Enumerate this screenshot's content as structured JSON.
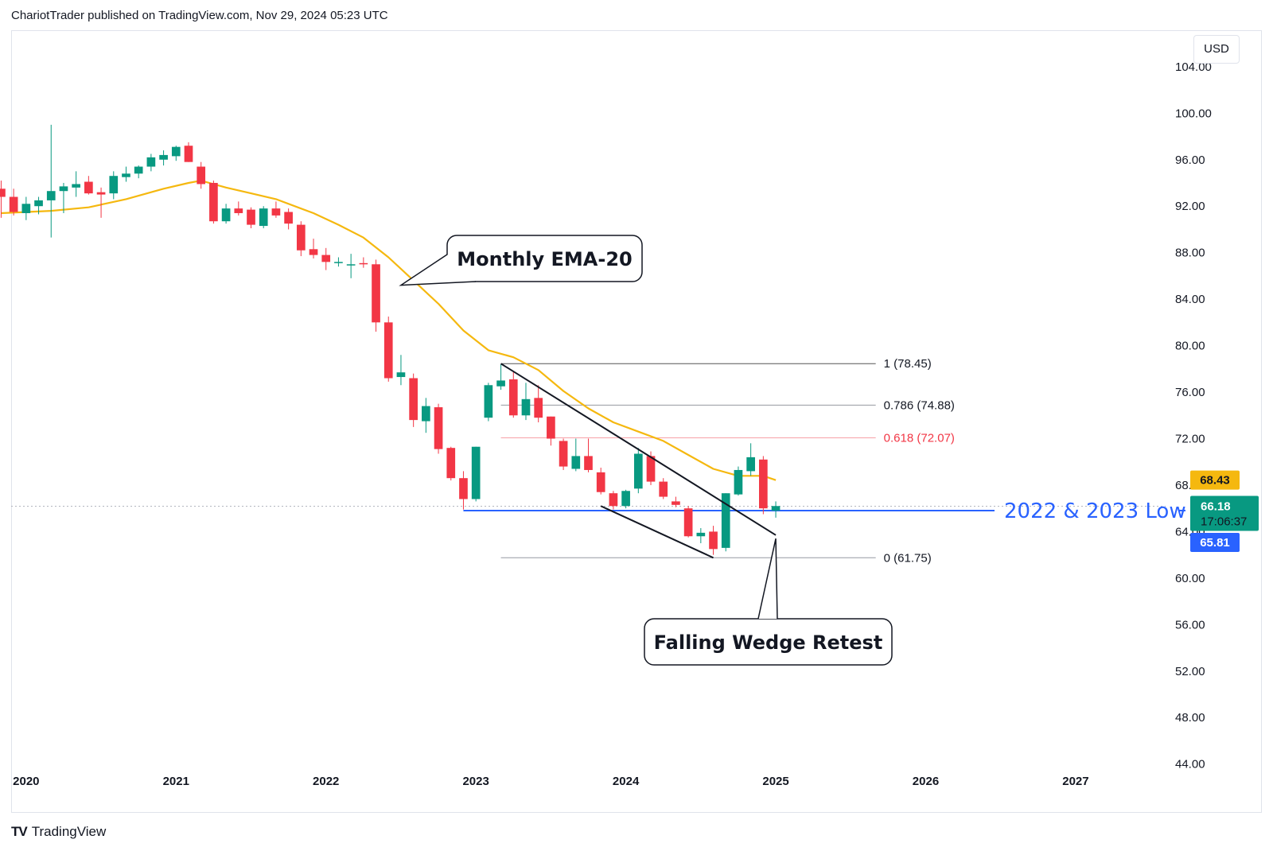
{
  "header": {
    "text": "ChariotTrader published on TradingView.com, Nov 29, 2024 05:23 UTC"
  },
  "currency": "USD",
  "footer": {
    "logo": "TV",
    "name": "TradingView"
  },
  "colors": {
    "up": "#089981",
    "down": "#f23645",
    "ema": "#f5b80f",
    "support": "#2962ff",
    "fib_618": "#f23645",
    "fib_line": "#787b86"
  },
  "chart_data": {
    "type": "candlestick",
    "timeframe": "monthly",
    "x_tick_labels": [
      "2020",
      "2021",
      "2022",
      "2023",
      "2024",
      "2025",
      "2026",
      "2027"
    ],
    "y_tick_labels": [
      "104.00",
      "100.00",
      "96.00",
      "92.00",
      "88.00",
      "84.00",
      "80.00",
      "76.00",
      "72.00",
      "68.00",
      "64.00",
      "60.00",
      "56.00",
      "52.00",
      "48.00",
      "44.00"
    ],
    "y_ticks": [
      104,
      100,
      96,
      92,
      88,
      84,
      80,
      76,
      72,
      68,
      64,
      60,
      56,
      52,
      48,
      44
    ],
    "ylim": [
      43.5,
      107
    ],
    "xlim": [
      2019.9,
      2027.6
    ],
    "candles": [
      {
        "t": "2019-11",
        "o": 93.5,
        "h": 94.2,
        "l": 91.0,
        "c": 92.8
      },
      {
        "t": "2019-12",
        "o": 92.8,
        "h": 93.5,
        "l": 91.2,
        "c": 91.5
      },
      {
        "t": "2020-01",
        "o": 91.4,
        "h": 92.8,
        "l": 90.8,
        "c": 92.2
      },
      {
        "t": "2020-02",
        "o": 92.0,
        "h": 92.8,
        "l": 91.3,
        "c": 92.5
      },
      {
        "t": "2020-03",
        "o": 92.5,
        "h": 99.0,
        "l": 89.3,
        "c": 93.3
      },
      {
        "t": "2020-04",
        "o": 93.3,
        "h": 94.0,
        "l": 91.4,
        "c": 93.7
      },
      {
        "t": "2020-05",
        "o": 93.6,
        "h": 95.0,
        "l": 92.8,
        "c": 93.9
      },
      {
        "t": "2020-06",
        "o": 94.1,
        "h": 94.6,
        "l": 93.0,
        "c": 93.1
      },
      {
        "t": "2020-07",
        "o": 93.2,
        "h": 93.6,
        "l": 91.0,
        "c": 93.0
      },
      {
        "t": "2020-08",
        "o": 93.1,
        "h": 95.0,
        "l": 92.6,
        "c": 94.6
      },
      {
        "t": "2020-09",
        "o": 94.5,
        "h": 95.4,
        "l": 94.1,
        "c": 94.8
      },
      {
        "t": "2020-10",
        "o": 94.8,
        "h": 95.5,
        "l": 94.4,
        "c": 95.4
      },
      {
        "t": "2020-11",
        "o": 95.4,
        "h": 96.5,
        "l": 95.0,
        "c": 96.2
      },
      {
        "t": "2020-12",
        "o": 96.0,
        "h": 96.8,
        "l": 95.5,
        "c": 96.4
      },
      {
        "t": "2021-01",
        "o": 96.3,
        "h": 97.2,
        "l": 95.9,
        "c": 97.1
      },
      {
        "t": "2021-02",
        "o": 97.2,
        "h": 97.5,
        "l": 95.8,
        "c": 95.8
      },
      {
        "t": "2021-03",
        "o": 95.4,
        "h": 95.8,
        "l": 93.5,
        "c": 93.9
      },
      {
        "t": "2021-04",
        "o": 94.0,
        "h": 94.2,
        "l": 90.5,
        "c": 90.7
      },
      {
        "t": "2021-05",
        "o": 90.7,
        "h": 92.2,
        "l": 90.5,
        "c": 91.8
      },
      {
        "t": "2021-06",
        "o": 91.8,
        "h": 92.4,
        "l": 91.2,
        "c": 91.4
      },
      {
        "t": "2021-07",
        "o": 91.7,
        "h": 91.9,
        "l": 90.1,
        "c": 90.4
      },
      {
        "t": "2021-08",
        "o": 90.3,
        "h": 92.0,
        "l": 90.1,
        "c": 91.8
      },
      {
        "t": "2021-09",
        "o": 91.8,
        "h": 92.4,
        "l": 91.0,
        "c": 91.2
      },
      {
        "t": "2021-10",
        "o": 91.5,
        "h": 91.8,
        "l": 90.0,
        "c": 90.5
      },
      {
        "t": "2021-11",
        "o": 90.4,
        "h": 90.7,
        "l": 87.7,
        "c": 88.2
      },
      {
        "t": "2021-12",
        "o": 88.3,
        "h": 89.2,
        "l": 87.5,
        "c": 87.8
      },
      {
        "t": "2022-01",
        "o": 87.8,
        "h": 88.4,
        "l": 86.5,
        "c": 87.2
      },
      {
        "t": "2022-02",
        "o": 87.1,
        "h": 87.6,
        "l": 86.8,
        "c": 87.2
      },
      {
        "t": "2022-03",
        "o": 87.0,
        "h": 87.9,
        "l": 85.8,
        "c": 87.0
      },
      {
        "t": "2022-04",
        "o": 87.1,
        "h": 87.6,
        "l": 86.7,
        "c": 87.0
      },
      {
        "t": "2022-05",
        "o": 87.0,
        "h": 87.4,
        "l": 81.2,
        "c": 82.0
      },
      {
        "t": "2022-06",
        "o": 82.0,
        "h": 82.5,
        "l": 76.9,
        "c": 77.2
      },
      {
        "t": "2022-07",
        "o": 77.3,
        "h": 79.2,
        "l": 76.6,
        "c": 77.7
      },
      {
        "t": "2022-08",
        "o": 77.2,
        "h": 77.6,
        "l": 73.0,
        "c": 73.6
      },
      {
        "t": "2022-09",
        "o": 73.5,
        "h": 75.5,
        "l": 72.5,
        "c": 74.8
      },
      {
        "t": "2022-10",
        "o": 74.7,
        "h": 75.0,
        "l": 70.7,
        "c": 71.1
      },
      {
        "t": "2022-11",
        "o": 71.2,
        "h": 71.3,
        "l": 68.4,
        "c": 68.6
      },
      {
        "t": "2022-12",
        "o": 68.6,
        "h": 69.2,
        "l": 65.9,
        "c": 66.8
      },
      {
        "t": "2023-01",
        "o": 66.8,
        "h": 71.3,
        "l": 66.6,
        "c": 71.3
      },
      {
        "t": "2023-02",
        "o": 73.8,
        "h": 76.8,
        "l": 73.5,
        "c": 76.6
      },
      {
        "t": "2023-03",
        "o": 76.5,
        "h": 78.4,
        "l": 76.2,
        "c": 77.0
      },
      {
        "t": "2023-04",
        "o": 77.1,
        "h": 77.8,
        "l": 73.8,
        "c": 74.0
      },
      {
        "t": "2023-05",
        "o": 74.0,
        "h": 76.8,
        "l": 73.6,
        "c": 75.4
      },
      {
        "t": "2023-06",
        "o": 75.5,
        "h": 76.6,
        "l": 73.4,
        "c": 73.8
      },
      {
        "t": "2023-07",
        "o": 73.9,
        "h": 73.9,
        "l": 71.4,
        "c": 72.0
      },
      {
        "t": "2023-08",
        "o": 71.8,
        "h": 72.0,
        "l": 69.3,
        "c": 69.6
      },
      {
        "t": "2023-09",
        "o": 69.4,
        "h": 72.0,
        "l": 69.2,
        "c": 70.5
      },
      {
        "t": "2023-10",
        "o": 70.5,
        "h": 72.0,
        "l": 69.1,
        "c": 69.3
      },
      {
        "t": "2023-11",
        "o": 69.1,
        "h": 69.5,
        "l": 67.2,
        "c": 67.4
      },
      {
        "t": "2023-12",
        "o": 67.3,
        "h": 67.5,
        "l": 65.9,
        "c": 66.2
      },
      {
        "t": "2024-01",
        "o": 66.2,
        "h": 67.6,
        "l": 66.0,
        "c": 67.5
      },
      {
        "t": "2024-02",
        "o": 67.7,
        "h": 71.2,
        "l": 67.3,
        "c": 70.7
      },
      {
        "t": "2024-03",
        "o": 70.5,
        "h": 70.9,
        "l": 68.0,
        "c": 68.3
      },
      {
        "t": "2024-04",
        "o": 68.3,
        "h": 68.6,
        "l": 66.8,
        "c": 67.0
      },
      {
        "t": "2024-05",
        "o": 66.6,
        "h": 67.0,
        "l": 66.1,
        "c": 66.3
      },
      {
        "t": "2024-06",
        "o": 66.0,
        "h": 66.2,
        "l": 63.5,
        "c": 63.6
      },
      {
        "t": "2024-07",
        "o": 63.6,
        "h": 64.3,
        "l": 63.0,
        "c": 63.9
      },
      {
        "t": "2024-08",
        "o": 64.0,
        "h": 64.5,
        "l": 62.0,
        "c": 62.5
      },
      {
        "t": "2024-09",
        "o": 62.6,
        "h": 67.3,
        "l": 62.3,
        "c": 67.3
      },
      {
        "t": "2024-10",
        "o": 67.2,
        "h": 69.6,
        "l": 67.1,
        "c": 69.3
      },
      {
        "t": "2024-11",
        "o": 69.2,
        "h": 71.6,
        "l": 68.8,
        "c": 70.4
      },
      {
        "t": "2024-12",
        "o": 70.2,
        "h": 70.5,
        "l": 65.5,
        "c": 66.0
      },
      {
        "t": "2025-01",
        "o": 65.8,
        "h": 66.6,
        "l": 65.2,
        "c": 66.2
      }
    ],
    "ema": {
      "name": "Monthly EMA-20",
      "points": [
        {
          "t": "2019-11",
          "v": 91.4
        },
        {
          "t": "2020-03",
          "v": 91.6
        },
        {
          "t": "2020-06",
          "v": 91.9
        },
        {
          "t": "2020-09",
          "v": 92.6
        },
        {
          "t": "2020-12",
          "v": 93.5
        },
        {
          "t": "2021-02",
          "v": 94.0
        },
        {
          "t": "2021-03",
          "v": 94.2
        },
        {
          "t": "2021-05",
          "v": 93.6
        },
        {
          "t": "2021-07",
          "v": 93.1
        },
        {
          "t": "2021-09",
          "v": 92.6
        },
        {
          "t": "2021-12",
          "v": 91.4
        },
        {
          "t": "2022-02",
          "v": 90.4
        },
        {
          "t": "2022-04",
          "v": 89.3
        },
        {
          "t": "2022-06",
          "v": 87.6
        },
        {
          "t": "2022-08",
          "v": 85.6
        },
        {
          "t": "2022-10",
          "v": 83.6
        },
        {
          "t": "2022-12",
          "v": 81.3
        },
        {
          "t": "2023-02",
          "v": 79.6
        },
        {
          "t": "2023-04",
          "v": 79.0
        },
        {
          "t": "2023-06",
          "v": 77.9
        },
        {
          "t": "2023-08",
          "v": 76.1
        },
        {
          "t": "2023-10",
          "v": 74.6
        },
        {
          "t": "2023-12",
          "v": 73.4
        },
        {
          "t": "2024-02",
          "v": 72.6
        },
        {
          "t": "2024-04",
          "v": 71.8
        },
        {
          "t": "2024-06",
          "v": 70.6
        },
        {
          "t": "2024-08",
          "v": 69.4
        },
        {
          "t": "2024-10",
          "v": 68.8
        },
        {
          "t": "2024-12",
          "v": 68.8
        },
        {
          "t": "2025-01",
          "v": 68.43
        }
      ]
    },
    "fib_levels": [
      {
        "ratio": "1",
        "price": 78.45,
        "label": "1 (78.45)",
        "color": "#131722"
      },
      {
        "ratio": "0.786",
        "price": 74.88,
        "label": "0.786 (74.88)",
        "color": "#131722"
      },
      {
        "ratio": "0.618",
        "price": 72.07,
        "label": "0.618 (72.07)",
        "color": "#f23645"
      },
      {
        "ratio": "0",
        "price": 61.75,
        "label": "0 (61.75)",
        "color": "#131722"
      }
    ],
    "fib_range": {
      "t_start": "2023-03",
      "t_end": "2025-09"
    },
    "wedge": {
      "upper": [
        {
          "t": "2023-03",
          "v": 78.45
        },
        {
          "t": "2025-01",
          "v": 63.7
        }
      ],
      "lower": [
        {
          "t": "2023-11",
          "v": 66.2
        },
        {
          "t": "2024-08",
          "v": 61.75
        }
      ]
    },
    "support": {
      "price": 65.81,
      "t_start": "2022-12",
      "label": "2022 & 2023 Low"
    },
    "price_labels": [
      {
        "value": "68.43",
        "kind": "ema",
        "bg": "#f5b80f",
        "fg": "#131722"
      },
      {
        "value": "66.18",
        "sub": "17:06:37",
        "kind": "last",
        "bg": "#089981",
        "fg": "#ffffff"
      },
      {
        "value": "65.81",
        "kind": "support",
        "bg": "#2962ff",
        "fg": "#ffffff"
      }
    ],
    "last_price": 66.18,
    "annotations": [
      {
        "text": "Monthly EMA-20",
        "target_t": "2022-07",
        "target_v": 85.2
      },
      {
        "text": "Falling Wedge Retest",
        "target_t": "2025-01",
        "target_v": 63.4
      }
    ]
  }
}
